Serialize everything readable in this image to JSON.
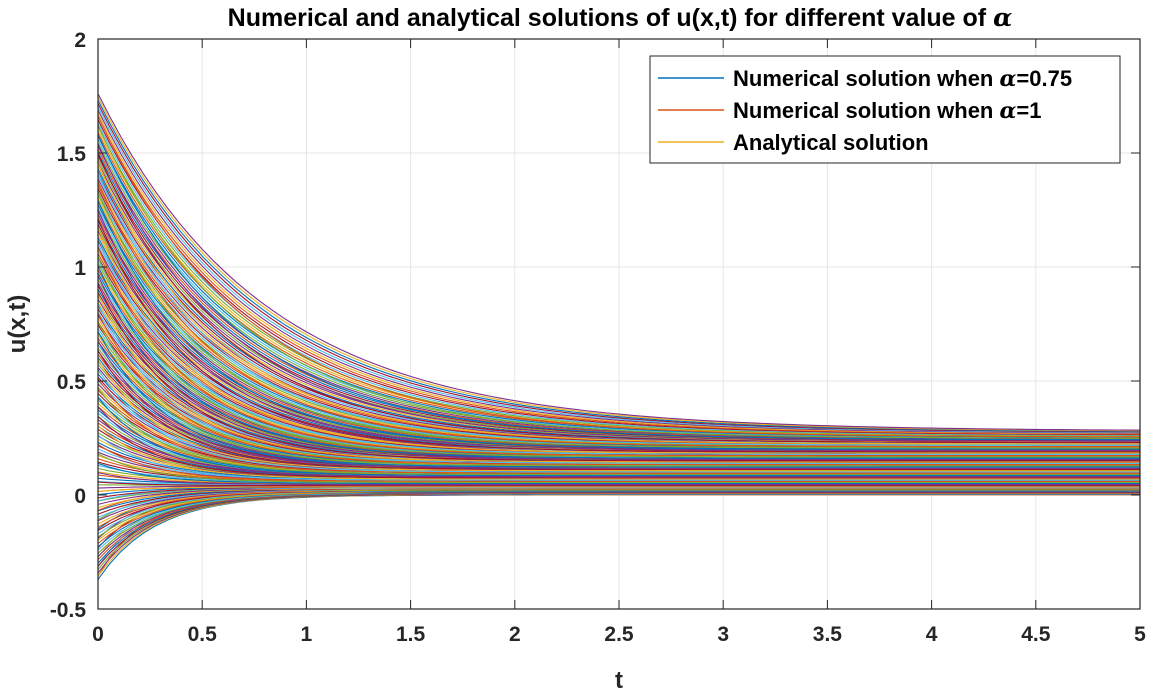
{
  "chart_data": {
    "type": "line",
    "title": "Numerical and analytical solutions of u(x,t) for different value of ",
    "title_symbol": "α",
    "xlabel": "t",
    "ylabel": "u(x,t)",
    "xlim": [
      0,
      5
    ],
    "ylim": [
      -0.5,
      2
    ],
    "xticks": [
      0,
      0.5,
      1,
      1.5,
      2,
      2.5,
      3,
      3.5,
      4,
      4.5,
      5
    ],
    "yticks": [
      -0.5,
      0,
      0.5,
      1,
      1.5,
      2
    ],
    "x_tick_labels": [
      "0",
      "0.5",
      "1",
      "1.5",
      "2",
      "2.5",
      "3",
      "3.5",
      "4",
      "4.5",
      "5"
    ],
    "y_tick_labels": [
      "-0.5",
      "0",
      "0.5",
      "1",
      "1.5",
      "2"
    ],
    "grid": true,
    "legend_position": "top-right",
    "legend": [
      {
        "prefix": "Numerical solution when ",
        "symbol": "α",
        "suffix": "=0.75",
        "color": "#0072BD"
      },
      {
        "prefix": "Numerical solution when ",
        "symbol": "α",
        "suffix": "=1",
        "color": "#D95319"
      },
      {
        "prefix": "Analytical solution",
        "symbol": "",
        "suffix": "",
        "color": "#EDB120"
      }
    ],
    "palette": [
      "#0072BD",
      "#D95319",
      "#EDB120",
      "#7E2F8E",
      "#77AC30",
      "#4DBEEE",
      "#A2142F"
    ],
    "curve_families": {
      "count": 150,
      "initial_u_range": [
        -0.37,
        1.76
      ],
      "final_u_range": [
        0.0,
        0.28
      ],
      "t_range": [
        0,
        5
      ]
    }
  }
}
